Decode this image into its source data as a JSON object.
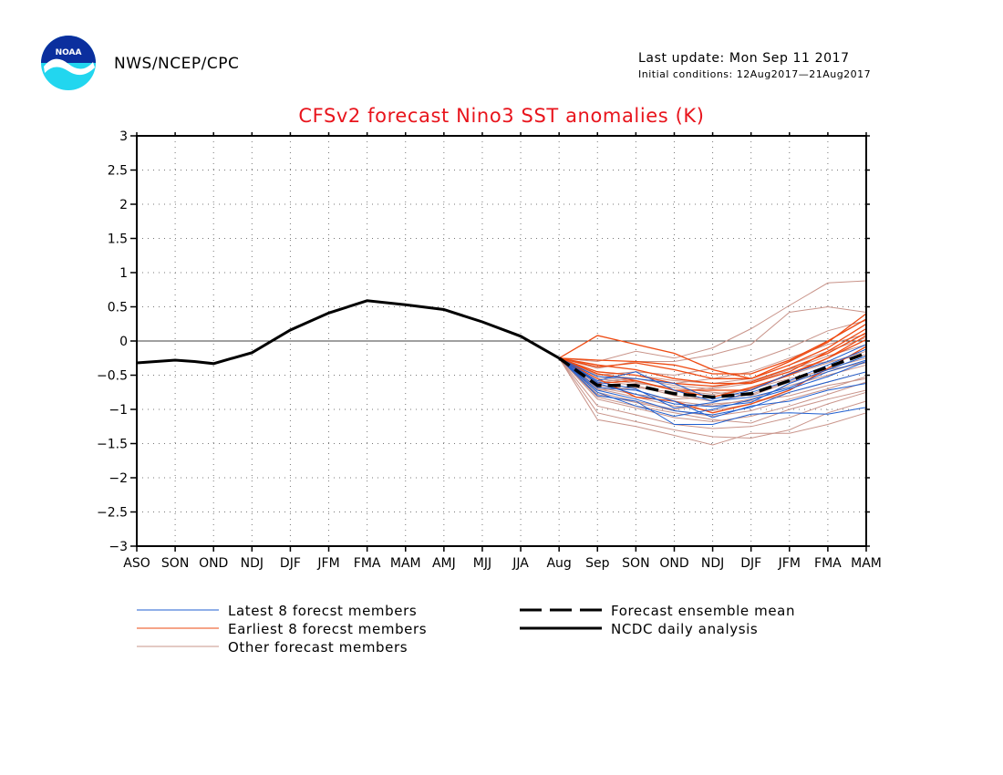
{
  "header": {
    "agency": "NWS/NCEP/CPC",
    "last_update": "Last update: Mon Sep 11 2017",
    "initial_conditions": "Initial conditions: 12Aug2017—21Aug2017",
    "logo_icon": "noaa-logo-icon",
    "logo_text": "NOAA"
  },
  "colors": {
    "title": "#e8141c",
    "latest": "#1f5fd0",
    "earliest": "#ee4a12",
    "other": "#c9948a",
    "mean": "#000000",
    "analysis": "#000000"
  },
  "chart_data": {
    "type": "line",
    "title": "CFSv2 forecast Nino3 SST anomalies (K)",
    "xlabel": "",
    "ylabel": "",
    "categories": [
      "ASO",
      "SON",
      "OND",
      "NDJ",
      "DJF",
      "JFM",
      "FMA",
      "MAM",
      "AMJ",
      "MJJ",
      "JJA",
      "Aug",
      "Sep",
      "SON",
      "OND",
      "NDJ",
      "DJF",
      "JFM",
      "FMA",
      "MAM"
    ],
    "ylim": [
      -3,
      3
    ],
    "yticks": [
      "3",
      "2.5",
      "2",
      "1.5",
      "1",
      "0.5",
      "0",
      "−0.5",
      "−1",
      "−1.5",
      "−2",
      "−2.5",
      "−3"
    ],
    "grid": true,
    "analysis": {
      "name": "NCDC daily analysis",
      "x": [
        0,
        0.5,
        1,
        1.5,
        2,
        3,
        4,
        5,
        6,
        7,
        8,
        9,
        10,
        11
      ],
      "y": [
        -0.32,
        -0.3,
        -0.28,
        -0.3,
        -0.33,
        -0.17,
        0.16,
        0.41,
        0.59,
        0.53,
        0.46,
        0.28,
        0.07,
        -0.25
      ]
    },
    "ensemble_mean": {
      "name": "Forecast ensemble mean",
      "x": [
        11,
        12,
        13,
        14,
        15,
        16,
        17,
        18,
        19
      ],
      "y": [
        -0.25,
        -0.65,
        -0.65,
        -0.77,
        -0.82,
        -0.77,
        -0.58,
        -0.38,
        -0.18
      ]
    },
    "member_x": [
      11,
      12,
      13,
      14,
      15,
      16,
      17,
      18,
      19
    ],
    "latest_members": [
      [
        -0.25,
        -0.8,
        -0.88,
        -1.22,
        -1.22,
        -1.07,
        -1.05,
        -1.07,
        -0.97
      ],
      [
        -0.25,
        -0.68,
        -0.72,
        -0.88,
        -1.12,
        -0.95,
        -0.88,
        -0.72,
        -0.62
      ],
      [
        -0.25,
        -0.58,
        -0.45,
        -0.72,
        -0.88,
        -0.82,
        -0.68,
        -0.45,
        -0.28
      ],
      [
        -0.25,
        -0.52,
        -0.55,
        -0.62,
        -0.85,
        -0.72,
        -0.48,
        -0.3,
        -0.05
      ],
      [
        -0.25,
        -0.72,
        -0.85,
        -1.02,
        -1.08,
        -0.97,
        -0.75,
        -0.6,
        -0.45
      ],
      [
        -0.25,
        -0.62,
        -0.78,
        -0.92,
        -0.96,
        -0.9,
        -0.62,
        -0.42,
        -0.22
      ],
      [
        -0.25,
        -0.75,
        -0.95,
        -1.1,
        -1.0,
        -0.86,
        -0.7,
        -0.52,
        -0.3
      ],
      [
        -0.25,
        -0.6,
        -0.7,
        -0.98,
        -0.9,
        -0.75,
        -0.58,
        -0.35,
        -0.12
      ]
    ],
    "earliest_members": [
      [
        -0.25,
        0.08,
        -0.05,
        -0.18,
        -0.42,
        -0.55,
        -0.3,
        -0.02,
        0.4
      ],
      [
        -0.25,
        -0.38,
        -0.32,
        -0.42,
        -0.55,
        -0.55,
        -0.35,
        -0.1,
        0.25
      ],
      [
        -0.25,
        -0.48,
        -0.58,
        -0.72,
        -0.82,
        -0.68,
        -0.5,
        -0.25,
        0.08
      ],
      [
        -0.25,
        -0.55,
        -0.82,
        -0.88,
        -1.05,
        -0.92,
        -0.72,
        -0.4,
        -0.08
      ],
      [
        -0.25,
        -0.35,
        -0.42,
        -0.55,
        -0.62,
        -0.62,
        -0.45,
        -0.15,
        0.18
      ],
      [
        -0.25,
        -0.62,
        -0.58,
        -0.72,
        -0.72,
        -0.72,
        -0.48,
        -0.25,
        0.02
      ],
      [
        -0.25,
        -0.28,
        -0.3,
        -0.35,
        -0.48,
        -0.48,
        -0.28,
        0.0,
        0.32
      ],
      [
        -0.25,
        -0.45,
        -0.5,
        -0.62,
        -0.66,
        -0.6,
        -0.4,
        -0.18,
        0.12
      ]
    ],
    "other_members": [
      [
        -0.25,
        -0.3,
        -0.15,
        -0.25,
        -0.1,
        0.18,
        0.52,
        0.85,
        0.88
      ],
      [
        -0.25,
        -0.4,
        -0.3,
        -0.3,
        -0.2,
        -0.05,
        0.42,
        0.5,
        0.42
      ],
      [
        -0.25,
        -0.5,
        -0.45,
        -0.5,
        -0.4,
        -0.3,
        -0.1,
        0.15,
        0.3
      ],
      [
        -0.25,
        -1.15,
        -1.25,
        -1.38,
        -1.52,
        -1.35,
        -1.35,
        -1.22,
        -1.05
      ],
      [
        -0.25,
        -1.05,
        -1.18,
        -1.3,
        -1.4,
        -1.42,
        -1.3,
        -1.05,
        -0.88
      ],
      [
        -0.25,
        -0.95,
        -1.08,
        -1.22,
        -1.28,
        -1.25,
        -1.12,
        -0.92,
        -0.75
      ],
      [
        -0.25,
        -0.85,
        -0.98,
        -1.12,
        -1.18,
        -1.1,
        -0.95,
        -0.78,
        -0.6
      ],
      [
        -0.25,
        -0.78,
        -0.9,
        -1.02,
        -1.1,
        -1.02,
        -0.85,
        -0.7,
        -0.52
      ],
      [
        -0.25,
        -0.7,
        -0.82,
        -0.95,
        -1.02,
        -0.92,
        -0.75,
        -0.6,
        -0.45
      ],
      [
        -0.25,
        -0.65,
        -0.72,
        -0.88,
        -0.95,
        -0.85,
        -0.65,
        -0.5,
        -0.35
      ],
      [
        -0.25,
        -0.58,
        -0.65,
        -0.8,
        -0.88,
        -0.78,
        -0.58,
        -0.4,
        -0.25
      ],
      [
        -0.25,
        -0.52,
        -0.6,
        -0.72,
        -0.78,
        -0.7,
        -0.5,
        -0.32,
        -0.15
      ],
      [
        -0.25,
        -0.48,
        -0.55,
        -0.65,
        -0.7,
        -0.62,
        -0.42,
        -0.22,
        -0.05
      ],
      [
        -0.25,
        -0.45,
        -0.5,
        -0.58,
        -0.62,
        -0.55,
        -0.35,
        -0.15,
        0.05
      ],
      [
        -0.25,
        -0.55,
        -0.62,
        -0.68,
        -0.75,
        -0.8,
        -0.6,
        -0.45,
        -0.3
      ],
      [
        -0.25,
        -0.68,
        -0.78,
        -0.85,
        -0.82,
        -0.7,
        -0.55,
        -0.42,
        -0.32
      ],
      [
        -0.25,
        -0.75,
        -0.88,
        -1.0,
        -0.92,
        -0.88,
        -0.8,
        -0.65,
        -0.55
      ],
      [
        -0.25,
        -0.82,
        -0.95,
        -1.05,
        -1.15,
        -1.2,
        -1.0,
        -0.85,
        -0.72
      ],
      [
        -0.25,
        -0.6,
        -0.55,
        -0.62,
        -0.55,
        -0.45,
        -0.25,
        -0.05,
        0.1
      ],
      [
        -0.25,
        -0.72,
        -0.68,
        -0.75,
        -0.68,
        -0.58,
        -0.4,
        -0.3,
        -0.2
      ]
    ],
    "legend": {
      "placement": "bottom",
      "latest": "Latest 8 forecst members",
      "earliest": "Earliest 8 forecst members",
      "other": "Other forecast members",
      "mean": "Forecast ensemble mean",
      "analysis": "NCDC daily analysis"
    }
  }
}
